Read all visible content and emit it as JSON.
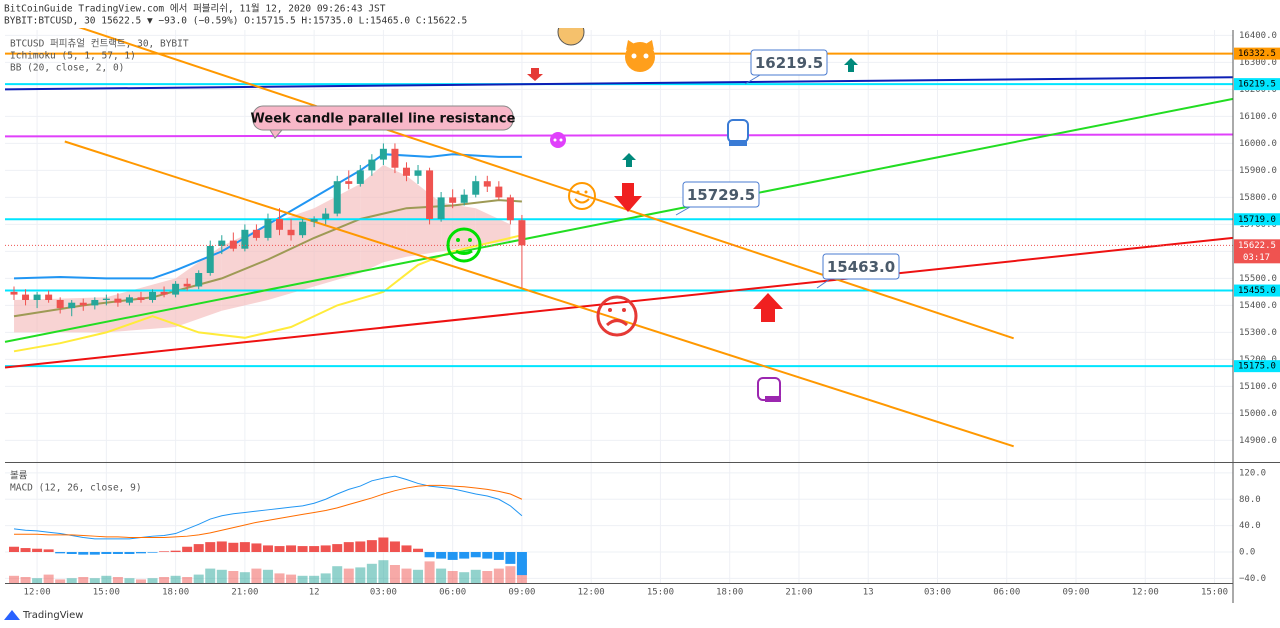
{
  "header": {
    "line1": "BitCoinGuide TradingView.com 에서 퍼블리쉬, 11월 12, 2020 09:26:43 JST",
    "line2": "BYBIT:BTCUSD, 30 15622.5 ▼ −93.0 (−0.59%) O:15715.5 H:15735.0 L:15465.0 C:15622.5"
  },
  "footer": "TradingView",
  "chart_data": [
    {
      "type": "candlestick",
      "legend": [
        "BTCUSD 퍼피츄얼 컨트랙트, 30, BYBIT",
        "Ichimoku (5, 1, 57, 1)",
        "BB (20, close, 2, 0)"
      ],
      "up_color": "#26a69a",
      "down_color": "#ef5350",
      "xlim": [
        10.61,
        63.8
      ],
      "ylim": [
        14820,
        16420
      ],
      "xticks": [
        {
          "value": 12,
          "label": "12:00"
        },
        {
          "value": 15,
          "label": "15:00"
        },
        {
          "value": 18,
          "label": "18:00"
        },
        {
          "value": 21,
          "label": "21:00"
        },
        {
          "value": 24,
          "label": "12"
        },
        {
          "value": 27,
          "label": "03:00"
        },
        {
          "value": 30,
          "label": "06:00"
        },
        {
          "value": 33,
          "label": "09:00"
        },
        {
          "value": 36,
          "label": "12:00"
        },
        {
          "value": 39,
          "label": "15:00"
        },
        {
          "value": 42,
          "label": "18:00"
        },
        {
          "value": 45,
          "label": "21:00"
        },
        {
          "value": 48,
          "label": "13"
        },
        {
          "value": 51,
          "label": "03:00"
        },
        {
          "value": 54,
          "label": "06:00"
        },
        {
          "value": 57,
          "label": "09:00"
        },
        {
          "value": 60,
          "label": "12:00"
        },
        {
          "value": 63,
          "label": "15:00"
        }
      ],
      "yticks": [
        {
          "value": 14900,
          "label": "14900.0"
        },
        {
          "value": 15000,
          "label": "15000.0"
        },
        {
          "value": 15100,
          "label": "15100.0"
        },
        {
          "value": 15200,
          "label": "15200.0"
        },
        {
          "value": 15300,
          "label": "15300.0"
        },
        {
          "value": 15400,
          "label": "15400.0"
        },
        {
          "value": 15500,
          "label": "15500.0"
        },
        {
          "value": 15600,
          "label": "15600.0"
        },
        {
          "value": 15700,
          "label": "15700.0"
        },
        {
          "value": 15800,
          "label": "15800.0"
        },
        {
          "value": 15900,
          "label": "15900.0"
        },
        {
          "value": 16000,
          "label": "16000.0"
        },
        {
          "value": 16100,
          "label": "16100.0"
        },
        {
          "value": 16200,
          "label": "16200.0"
        },
        {
          "value": 16300,
          "label": "16300.0"
        },
        {
          "value": 16400,
          "label": "16400.0"
        }
      ],
      "grid": true,
      "candles": {
        "x": [
          11,
          11.5,
          12,
          12.5,
          13,
          13.5,
          14,
          14.5,
          15,
          15.5,
          16,
          16.5,
          17,
          17.5,
          18,
          18.5,
          19,
          19.5,
          20,
          20.5,
          21,
          21.5,
          22,
          22.5,
          23,
          23.5,
          24,
          24.5,
          25,
          25.5,
          26,
          26.5,
          27,
          27.5,
          28,
          28.5,
          29,
          29.5,
          30,
          30.5,
          31,
          31.5,
          32,
          32.5,
          33
        ],
        "open": [
          15450,
          15440,
          15420,
          15440,
          15420,
          15390,
          15410,
          15400,
          15420,
          15425,
          15410,
          15430,
          15420,
          15450,
          15440,
          15480,
          15470,
          15520,
          15620,
          15640,
          15610,
          15680,
          15650,
          15720,
          15680,
          15660,
          15710,
          15720,
          15740,
          15860,
          15850,
          15900,
          15940,
          15980,
          15910,
          15880,
          15900,
          15720,
          15800,
          15780,
          15810,
          15860,
          15840,
          15800,
          15715.5
        ],
        "high": [
          15470,
          15460,
          15450,
          15455,
          15430,
          15420,
          15425,
          15430,
          15440,
          15445,
          15440,
          15450,
          15460,
          15470,
          15490,
          15500,
          15530,
          15640,
          15660,
          15670,
          15700,
          15700,
          15740,
          15760,
          15720,
          15720,
          15730,
          15760,
          15880,
          15900,
          15920,
          15960,
          16000,
          16000,
          15930,
          15920,
          15910,
          15820,
          15830,
          15830,
          15880,
          15880,
          15860,
          15810,
          15735
        ],
        "low": [
          15420,
          15400,
          15390,
          15410,
          15370,
          15360,
          15380,
          15385,
          15400,
          15395,
          15400,
          15410,
          15410,
          15430,
          15430,
          15455,
          15460,
          15510,
          15590,
          15600,
          15600,
          15640,
          15640,
          15660,
          15640,
          15650,
          15690,
          15700,
          15730,
          15830,
          15840,
          15880,
          15920,
          15890,
          15860,
          15850,
          15700,
          15710,
          15760,
          15770,
          15800,
          15820,
          15790,
          15700,
          15465
        ],
        "close": [
          15440,
          15420,
          15440,
          15420,
          15390,
          15410,
          15400,
          15420,
          15425,
          15410,
          15430,
          15420,
          15450,
          15440,
          15480,
          15470,
          15520,
          15620,
          15640,
          15610,
          15680,
          15650,
          15720,
          15680,
          15660,
          15710,
          15720,
          15740,
          15860,
          15850,
          15900,
          15940,
          15980,
          15910,
          15880,
          15900,
          15720,
          15800,
          15780,
          15810,
          15860,
          15840,
          15800,
          15715.5,
          15622.5
        ]
      },
      "cloud": {
        "color": "#f4b6b6",
        "x": [
          11,
          15,
          18,
          20,
          22,
          24,
          26,
          27,
          28,
          29.5,
          31,
          32.5
        ],
        "upper": [
          15420,
          15430,
          15500,
          15620,
          15700,
          15760,
          15850,
          15920,
          15880,
          15780,
          15760,
          15700
        ],
        "lower": [
          15300,
          15300,
          15320,
          15380,
          15420,
          15470,
          15520,
          15560,
          15580,
          15600,
          15620,
          15640
        ]
      },
      "overlays": [
        {
          "color": "#2196f3",
          "x": [
            11,
            13,
            15,
            17,
            18,
            20,
            22,
            24,
            26,
            27,
            29,
            30,
            32,
            33
          ],
          "values": [
            15500,
            15505,
            15500,
            15500,
            15530,
            15600,
            15700,
            15800,
            15900,
            15960,
            15950,
            15960,
            15950,
            15950
          ]
        },
        {
          "color": "#9e9a55",
          "x": [
            11,
            14,
            17,
            20,
            22,
            24,
            26,
            28,
            30,
            32,
            33
          ],
          "values": [
            15360,
            15400,
            15430,
            15500,
            15570,
            15650,
            15720,
            15760,
            15770,
            15790,
            15785
          ]
        },
        {
          "color": "#ffeb3b",
          "x": [
            11,
            13,
            15,
            17,
            19,
            21,
            23,
            25,
            27,
            28.5,
            30,
            32,
            33
          ],
          "values": [
            15230,
            15260,
            15300,
            15360,
            15300,
            15280,
            15320,
            15400,
            15450,
            15550,
            15600,
            15640,
            15660
          ]
        }
      ],
      "hlines": [
        {
          "value": 16332.5,
          "label": "16332.5",
          "color": "#ff9800"
        },
        {
          "value": 16219.5,
          "label": "16219.5",
          "color": "#00e5ff"
        },
        {
          "value": 15719,
          "label": "15719.0",
          "color": "#00e5ff"
        },
        {
          "value": 15455,
          "label": "15455.0",
          "color": "#00e5ff"
        },
        {
          "value": 15175,
          "label": "15175.0",
          "color": "#00e5ff"
        }
      ],
      "last_price": {
        "value": 15622.5,
        "label": "15622.5",
        "color": "#ef5350"
      },
      "countdown": "03:17",
      "trendlines": [
        {
          "color": "#0d1fb5",
          "x": [
            10.61,
            63.8
          ],
          "y": [
            16200,
            16245
          ]
        },
        {
          "color": "#e040fb",
          "x": [
            10.61,
            63.8
          ],
          "y": [
            16026,
            16033
          ]
        },
        {
          "color": "#22dd22",
          "x": [
            10.61,
            63.8
          ],
          "y": [
            15265,
            16165
          ]
        },
        {
          "color": "#ee1111",
          "x": [
            10.61,
            63.8
          ],
          "y": [
            15170,
            15650
          ]
        },
        {
          "color": "#ff9800",
          "x": [
            13.2,
            54.3
          ],
          "y": [
            16448,
            15278
          ]
        },
        {
          "color": "#ff9800",
          "x": [
            13.2,
            54.3
          ],
          "y": [
            16007,
            14878
          ]
        }
      ],
      "callouts": [
        "16219.5",
        "15729.5",
        "15463.0",
        "Week candle parallel line resistance"
      ]
    },
    {
      "type": "macd",
      "title": "MACD (12, 26, close, 9)",
      "ylim": [
        -47,
        135
      ],
      "yticks": [
        {
          "value": 120,
          "label": "120.0"
        },
        {
          "value": 80,
          "label": "80.0"
        },
        {
          "value": 40,
          "label": "40.0"
        },
        {
          "value": 0,
          "label": "0.0"
        },
        {
          "value": -40,
          "label": "−40.0"
        }
      ],
      "histogram": {
        "pos_color": "#ef5350",
        "neg_color": "#2196f3",
        "values": [
          8,
          6,
          5,
          4,
          -2,
          -3,
          -4,
          -4,
          -3,
          -3,
          -3,
          -2,
          -1,
          1,
          2,
          8,
          12,
          15,
          16,
          14,
          15,
          13,
          10,
          9,
          10,
          9,
          9,
          10,
          12,
          15,
          16,
          18,
          22,
          16,
          10,
          5,
          -8,
          -10,
          -12,
          -10,
          -8,
          -10,
          -12,
          -18,
          -35
        ]
      },
      "series": [
        {
          "color": "#2196f3",
          "values": [
            35,
            33,
            32,
            30,
            28,
            25,
            22,
            20,
            20,
            20,
            20,
            22,
            24,
            25,
            28,
            35,
            42,
            50,
            55,
            58,
            60,
            62,
            64,
            66,
            68,
            70,
            74,
            80,
            88,
            95,
            100,
            108,
            112,
            115,
            110,
            104,
            100,
            98,
            96,
            92,
            88,
            85,
            80,
            70,
            55
          ]
        },
        {
          "color": "#ff6d00",
          "values": [
            27,
            27,
            27,
            26,
            26,
            26,
            25,
            24,
            23,
            23,
            22,
            22,
            22,
            22,
            23,
            24,
            26,
            29,
            33,
            37,
            41,
            45,
            48,
            51,
            54,
            57,
            60,
            63,
            67,
            72,
            77,
            82,
            88,
            93,
            97,
            100,
            101,
            101,
            100,
            99,
            97,
            95,
            92,
            88,
            80
          ]
        }
      ]
    },
    {
      "type": "volume",
      "title": "볼륨",
      "ylim": [
        0,
        500
      ],
      "values": [
        30,
        25,
        20,
        35,
        15,
        20,
        25,
        20,
        30,
        25,
        20,
        15,
        20,
        25,
        30,
        25,
        35,
        60,
        55,
        50,
        45,
        60,
        55,
        40,
        35,
        30,
        30,
        40,
        70,
        60,
        65,
        80,
        95,
        75,
        60,
        55,
        90,
        60,
        50,
        45,
        55,
        50,
        60,
        70,
        100
      ]
    }
  ]
}
